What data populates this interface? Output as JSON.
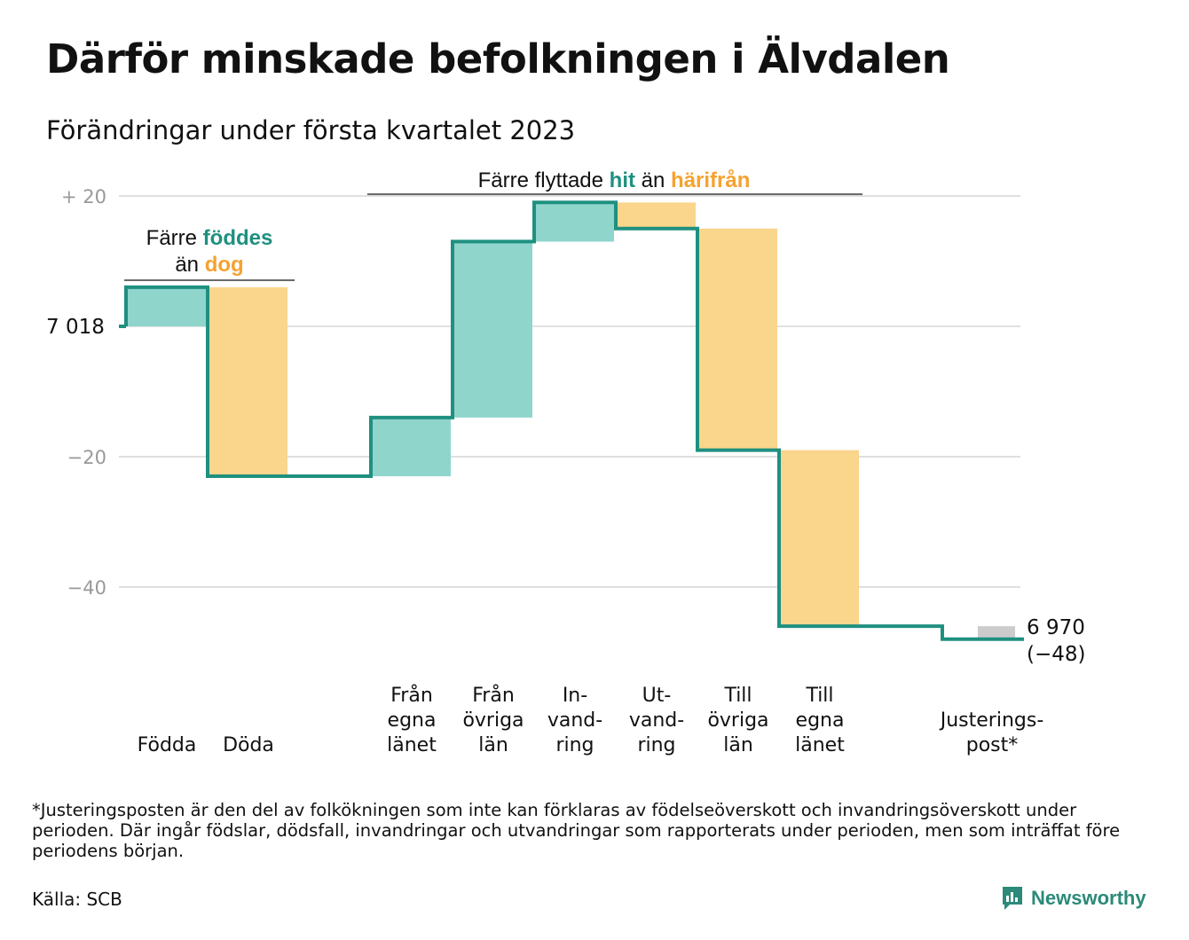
{
  "title": "Därför minskade befolkningen i Älvdalen",
  "subtitle": "Förändringar under första kvartalet 2023",
  "footnote": "*Justeringsposten är den del av folkökningen som inte kan förklaras av födelseöverskott och invandringsöverskott under perioden. Där ingår födslar, dödsfall, invandringar och utvandringar som rapporterats under perioden, men som inträffat före periodens början.",
  "source": "Källa: SCB",
  "brand": "Newsworthy",
  "colors": {
    "increase": "#8fd5cc",
    "decrease": "#fad58c",
    "adjustment": "#cccccc",
    "line": "#1f9080",
    "grid": "#e0e0e0",
    "axis_text": "#999999",
    "teal_text": "#1f9080",
    "orange_text": "#f5a230"
  },
  "chart_data": {
    "type": "waterfall",
    "start_label": "7 018",
    "end_label_value": "6 970",
    "end_label_change": "(−48)",
    "y_ticks": [
      "+ 20",
      "",
      "−20",
      "−40"
    ],
    "y_tick_values": [
      20,
      0,
      -20,
      -40
    ],
    "ylim": [
      -50,
      22
    ],
    "grid": true,
    "steps": [
      {
        "category": [
          "Födda"
        ],
        "value": 6,
        "kind": "increase"
      },
      {
        "category": [
          "Döda"
        ],
        "value": -29,
        "kind": "decrease"
      },
      {
        "category": [],
        "value": 0,
        "kind": "gap"
      },
      {
        "category": [
          "Från",
          "egna",
          "länet"
        ],
        "value": 9,
        "kind": "increase"
      },
      {
        "category": [
          "Från",
          "övriga",
          "län"
        ],
        "value": 27,
        "kind": "increase"
      },
      {
        "category": [
          "In-",
          "vand-",
          "ring"
        ],
        "value": 6,
        "kind": "increase"
      },
      {
        "category": [
          "Ut-",
          "vand-",
          "ring"
        ],
        "value": -4,
        "kind": "decrease"
      },
      {
        "category": [
          "Till",
          "övriga",
          "län"
        ],
        "value": -34,
        "kind": "decrease"
      },
      {
        "category": [
          "Till",
          "egna",
          "länet"
        ],
        "value": -27,
        "kind": "decrease"
      },
      {
        "category": [],
        "value": 0,
        "kind": "gap"
      },
      {
        "category": [
          "Justerings-",
          "post*"
        ],
        "value": -2,
        "kind": "adjustment"
      }
    ],
    "annotations": [
      {
        "id": "births",
        "line1": [
          "Färre ",
          "föddes"
        ],
        "line2": [
          "än ",
          "dog"
        ]
      },
      {
        "id": "moves",
        "line1": [
          "Färre flyttade ",
          "hit",
          " än ",
          "härifrån"
        ]
      }
    ]
  }
}
